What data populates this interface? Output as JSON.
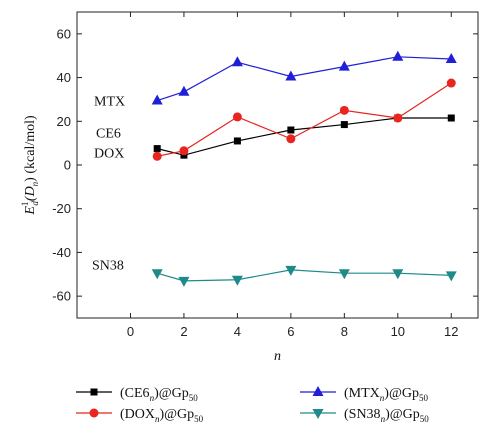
{
  "chart_data": {
    "type": "line",
    "xlabel": "n",
    "ylabel": {
      "prefix": "E",
      "sub": "d",
      "sup": "1",
      "body": "(D",
      "body_sub": "n",
      "tail": ") (kcal/mol)"
    },
    "xlim": [
      -2,
      13
    ],
    "ylim": [
      -70,
      70
    ],
    "xticks": [
      0,
      2,
      4,
      6,
      8,
      10,
      12
    ],
    "yticks": [
      -60,
      -40,
      -20,
      0,
      20,
      40,
      60
    ],
    "x": [
      1,
      2,
      4,
      6,
      8,
      10,
      12
    ],
    "series": [
      {
        "key": "ce6",
        "name": "(CE6n)@Gp50",
        "label_pre": "(CE6",
        "label_sub1": "n",
        "label_mid": ")@Gp",
        "label_sub2": "50",
        "annotation": "CE6",
        "color": "#000000",
        "marker": "square",
        "values": [
          7.5,
          4.5,
          11,
          16,
          18.5,
          21.5,
          21.5
        ]
      },
      {
        "key": "dox",
        "name": "(DOXn)@Gp50",
        "label_pre": "(DOX",
        "label_sub1": "n",
        "label_mid": ")@Gp",
        "label_sub2": "50",
        "annotation": "DOX",
        "color": "#e8251f",
        "marker": "circle",
        "values": [
          4,
          6.5,
          22,
          12,
          25,
          21.5,
          37.5
        ]
      },
      {
        "key": "mtx",
        "name": "(MTXn)@Gp50",
        "label_pre": "(MTX",
        "label_sub1": "n",
        "label_mid": ")@Gp",
        "label_sub2": "50",
        "annotation": "MTX",
        "color": "#1f1fd8",
        "marker": "triangle-up",
        "values": [
          29.5,
          33.5,
          47,
          40.5,
          45,
          49.5,
          48.5
        ]
      },
      {
        "key": "sn38",
        "name": "(SN38n)@Gp50",
        "label_pre": "(SN38",
        "label_sub1": "n",
        "label_mid": ")@Gp",
        "label_sub2": "50",
        "annotation": "SN38",
        "color": "#1f8a8a",
        "marker": "triangle-down",
        "values": [
          -49.5,
          -53,
          -52.5,
          -48,
          -49.5,
          -49.5,
          -50.5
        ]
      }
    ],
    "grid": false,
    "legend": "bottom"
  }
}
